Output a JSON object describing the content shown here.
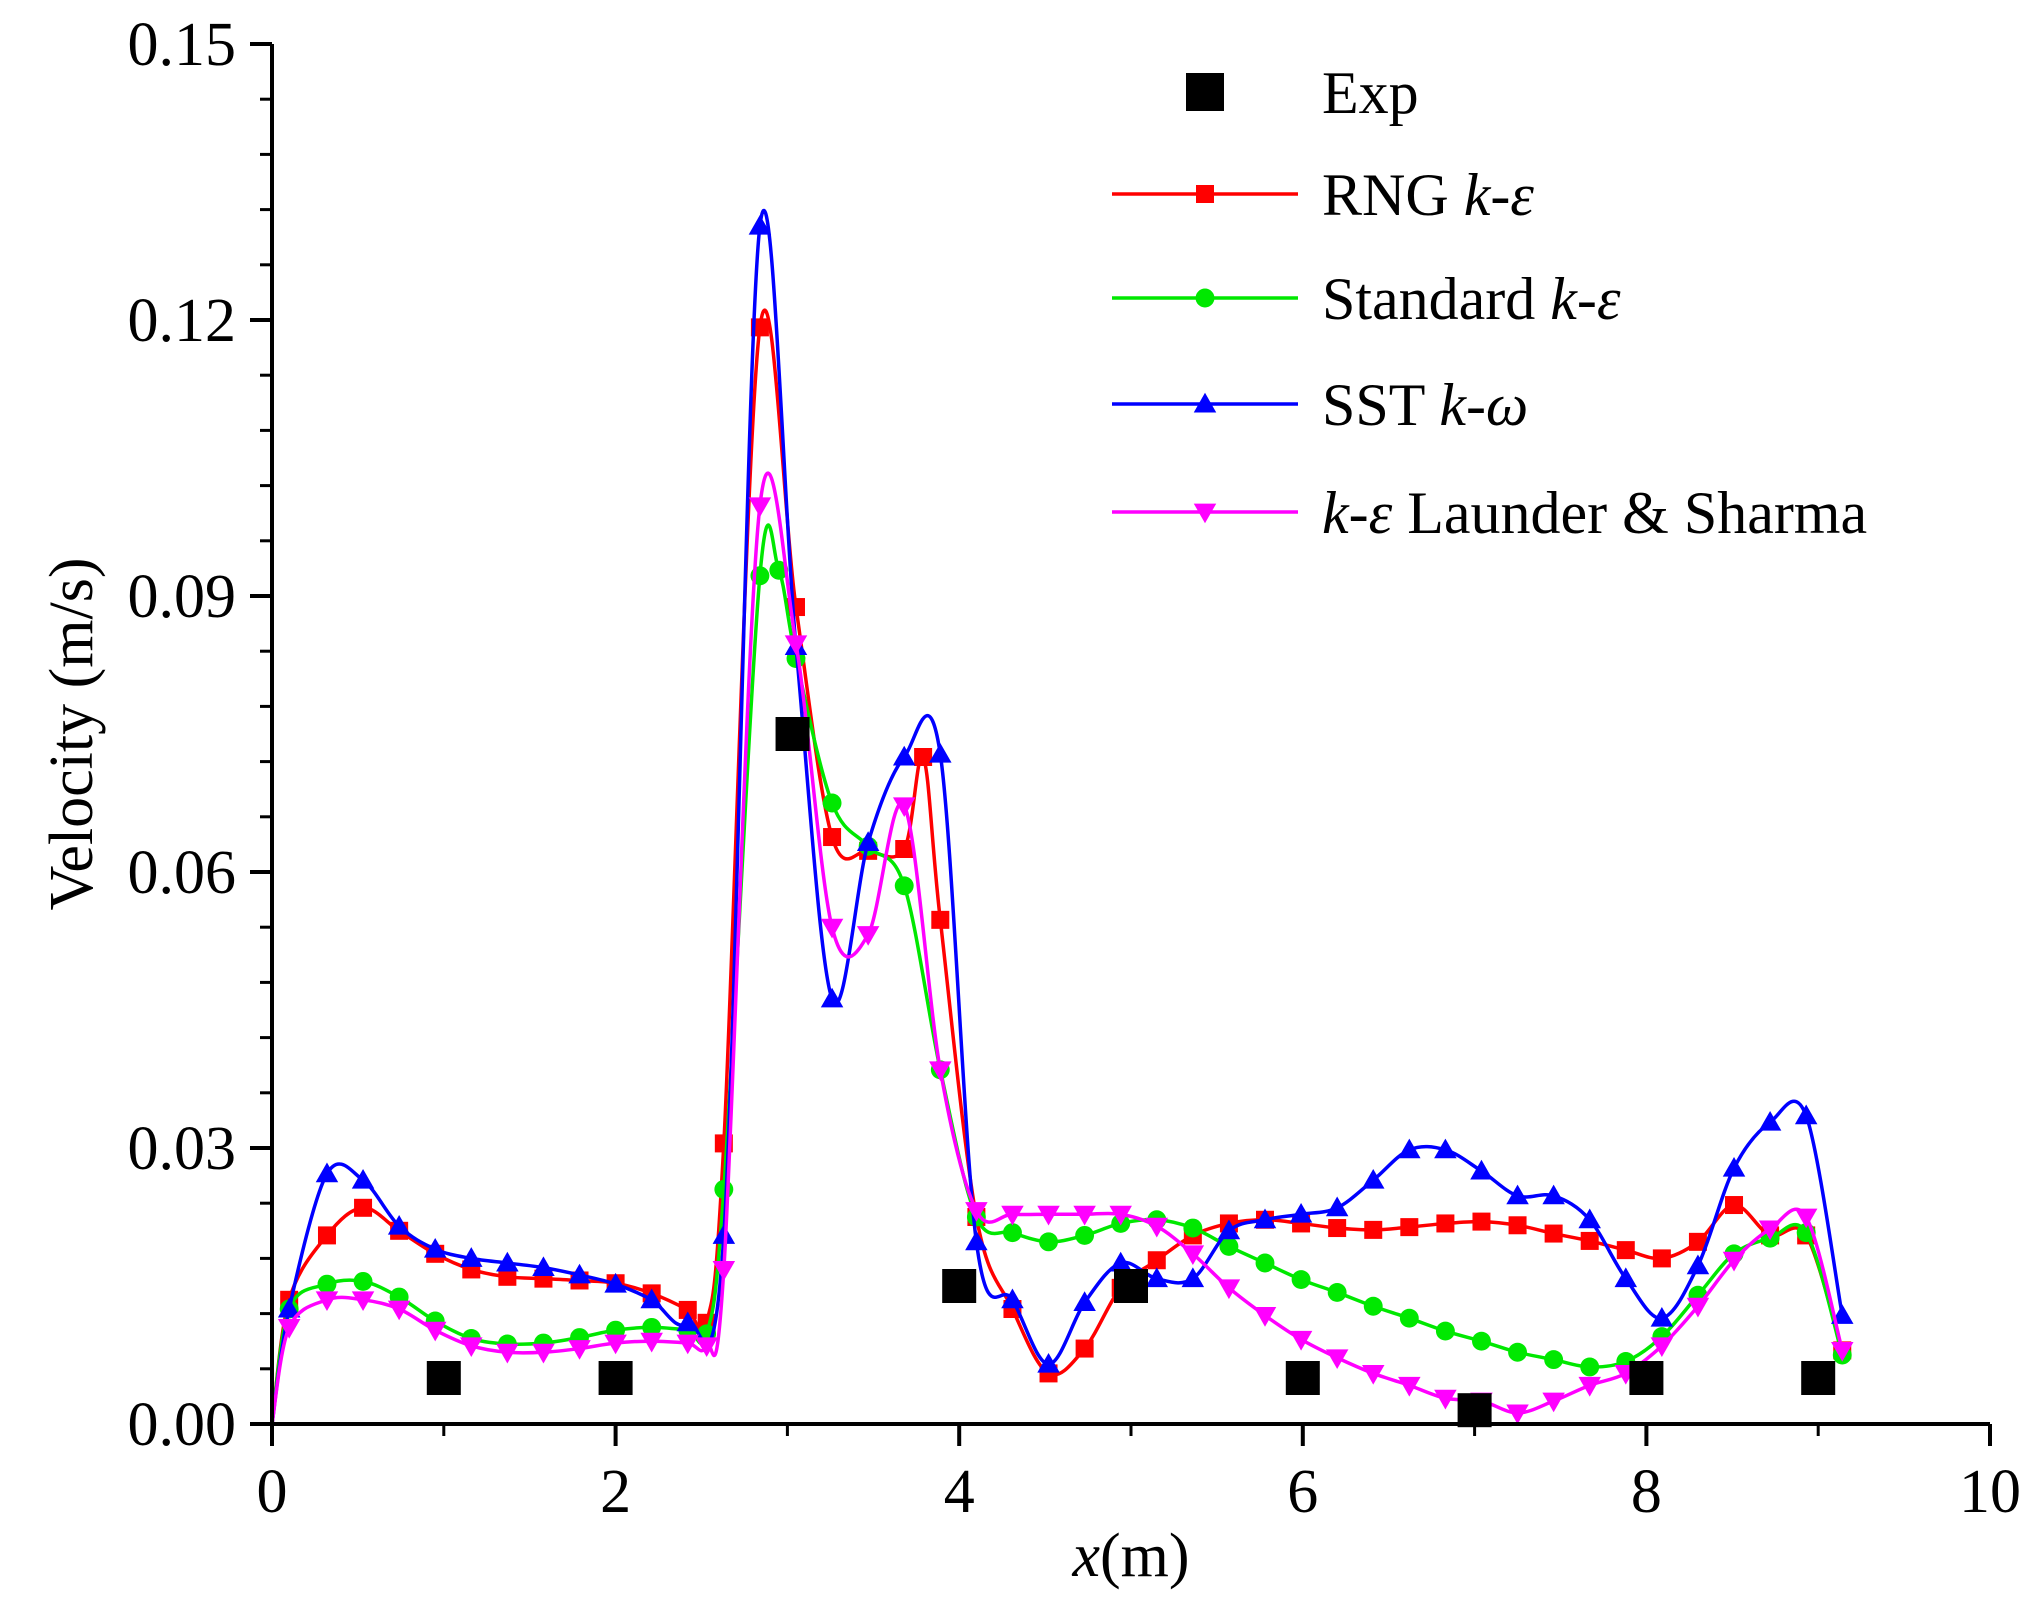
{
  "chart_data": {
    "type": "line",
    "title": "",
    "xlabel_italic": "x",
    "xlabel_rest": "(m)",
    "ylabel": "Velocity (m/s)",
    "xlim": [
      0,
      10
    ],
    "ylim": [
      0,
      0.15
    ],
    "xticks": [
      0,
      2,
      4,
      6,
      8,
      10
    ],
    "xtick_labels": [
      "0",
      "2",
      "4",
      "6",
      "8",
      "10"
    ],
    "yticks": [
      0,
      0.03,
      0.06,
      0.09,
      0.12,
      0.15
    ],
    "ytick_labels": [
      "0.00",
      "0.03",
      "0.06",
      "0.09",
      "0.12",
      "0.15"
    ],
    "legend_position": "top-right",
    "legend": [
      {
        "key": "exp",
        "prefix": "Exp",
        "italic": "",
        "suffix": ""
      },
      {
        "key": "rng",
        "prefix": "RNG ",
        "italic": "k-ε",
        "suffix": ""
      },
      {
        "key": "std",
        "prefix": "Standard ",
        "italic": "k-ε",
        "suffix": ""
      },
      {
        "key": "sst",
        "prefix": "SST ",
        "italic": "k-ω",
        "suffix": ""
      },
      {
        "key": "ls",
        "prefix": "",
        "italic": "k-ε",
        "suffix": " Launder & Sharma"
      }
    ],
    "series": [
      {
        "name": "Exp",
        "key": "exp",
        "color": "#000000",
        "marker": "square",
        "line": false,
        "x": [
          1,
          2,
          3.03,
          4,
          5,
          6,
          7,
          8,
          9
        ],
        "y": [
          0.005,
          0.005,
          0.075,
          0.015,
          0.015,
          0.005,
          0.0015,
          0.005,
          0.005
        ]
      },
      {
        "name": "RNG k-ε",
        "key": "rng",
        "color": "#ff0000",
        "marker": "square",
        "line": true,
        "x": [
          0,
          0.1,
          0.32,
          0.53,
          0.74,
          0.95,
          1.16,
          1.37,
          1.58,
          1.79,
          2.0,
          2.21,
          2.42,
          2.53,
          2.63,
          2.84,
          3.05,
          3.26,
          3.47,
          3.68,
          3.79,
          3.89,
          4.1,
          4.31,
          4.52,
          4.73,
          4.94,
          5.15,
          5.36,
          5.57,
          5.78,
          5.99,
          6.2,
          6.41,
          6.62,
          6.83,
          7.04,
          7.25,
          7.46,
          7.67,
          7.88,
          8.09,
          8.3,
          8.51,
          8.72,
          8.93,
          9.14
        ],
        "y": [
          0.0,
          0.0135,
          0.0205,
          0.0235,
          0.021,
          0.0185,
          0.0168,
          0.016,
          0.0158,
          0.0156,
          0.0153,
          0.0142,
          0.0124,
          0.011,
          0.0305,
          0.1192,
          0.0888,
          0.0638,
          0.0623,
          0.0625,
          0.0725,
          0.0548,
          0.0225,
          0.0125,
          0.0055,
          0.0082,
          0.0148,
          0.0178,
          0.0205,
          0.0218,
          0.0222,
          0.0218,
          0.0213,
          0.0211,
          0.0214,
          0.0218,
          0.022,
          0.0216,
          0.0207,
          0.0199,
          0.0189,
          0.018,
          0.0198,
          0.0238,
          0.0205,
          0.0205,
          0.008
        ]
      },
      {
        "name": "Standard k-ε",
        "key": "std",
        "color": "#00e800",
        "marker": "circle",
        "line": true,
        "x": [
          0,
          0.1,
          0.32,
          0.53,
          0.74,
          0.95,
          1.16,
          1.37,
          1.58,
          1.79,
          2.0,
          2.21,
          2.42,
          2.53,
          2.63,
          2.84,
          2.95,
          3.05,
          3.26,
          3.47,
          3.68,
          3.89,
          4.1,
          4.31,
          4.52,
          4.73,
          4.94,
          5.15,
          5.36,
          5.57,
          5.78,
          5.99,
          6.2,
          6.41,
          6.62,
          6.83,
          7.04,
          7.25,
          7.46,
          7.67,
          7.88,
          8.09,
          8.3,
          8.51,
          8.72,
          8.93,
          9.14
        ],
        "y": [
          0.0,
          0.0125,
          0.0152,
          0.0155,
          0.0138,
          0.0112,
          0.0093,
          0.0087,
          0.0088,
          0.0094,
          0.0102,
          0.0105,
          0.0102,
          0.0098,
          0.0255,
          0.0922,
          0.0928,
          0.0832,
          0.0675,
          0.0628,
          0.0585,
          0.0385,
          0.0225,
          0.0208,
          0.0198,
          0.0205,
          0.0218,
          0.0222,
          0.0213,
          0.0193,
          0.0175,
          0.0157,
          0.0143,
          0.0128,
          0.0115,
          0.0101,
          0.009,
          0.0078,
          0.007,
          0.0062,
          0.0068,
          0.0095,
          0.014,
          0.0185,
          0.0202,
          0.0208,
          0.0075
        ]
      },
      {
        "name": "SST k-ω",
        "key": "sst",
        "color": "#0000ff",
        "marker": "triangle-up",
        "line": true,
        "x": [
          0,
          0.1,
          0.32,
          0.53,
          0.74,
          0.95,
          1.16,
          1.37,
          1.58,
          1.79,
          2.0,
          2.21,
          2.42,
          2.63,
          2.84,
          3.05,
          3.26,
          3.47,
          3.68,
          3.89,
          4.1,
          4.31,
          4.52,
          4.73,
          4.94,
          5.15,
          5.36,
          5.57,
          5.78,
          5.99,
          6.2,
          6.41,
          6.62,
          6.83,
          7.04,
          7.25,
          7.46,
          7.67,
          7.88,
          8.09,
          8.3,
          8.51,
          8.72,
          8.93,
          9.14
        ],
        "y": [
          0.0,
          0.0125,
          0.0272,
          0.0265,
          0.0215,
          0.019,
          0.018,
          0.0175,
          0.017,
          0.0162,
          0.0152,
          0.0135,
          0.011,
          0.0205,
          0.1302,
          0.0845,
          0.0462,
          0.0632,
          0.0725,
          0.0728,
          0.0198,
          0.0135,
          0.0065,
          0.0132,
          0.0175,
          0.0158,
          0.0158,
          0.021,
          0.0222,
          0.0228,
          0.0235,
          0.0265,
          0.0298,
          0.0298,
          0.0275,
          0.0248,
          0.0248,
          0.0222,
          0.0158,
          0.0115,
          0.0172,
          0.0278,
          0.0328,
          0.0335,
          0.0118
        ]
      },
      {
        "name": "k-ε Launder & Sharma",
        "key": "ls",
        "color": "#ff00ff",
        "marker": "triangle-down",
        "line": true,
        "x": [
          0,
          0.1,
          0.32,
          0.53,
          0.74,
          0.95,
          1.16,
          1.37,
          1.58,
          1.79,
          2.0,
          2.21,
          2.42,
          2.53,
          2.63,
          2.84,
          3.05,
          3.26,
          3.47,
          3.68,
          3.89,
          4.1,
          4.31,
          4.52,
          4.73,
          4.94,
          5.15,
          5.36,
          5.57,
          5.78,
          5.99,
          6.2,
          6.41,
          6.62,
          6.83,
          7.04,
          7.25,
          7.46,
          7.67,
          7.88,
          8.09,
          8.3,
          8.51,
          8.72,
          8.93,
          9.14
        ],
        "y": [
          0.0,
          0.0105,
          0.0135,
          0.0135,
          0.0125,
          0.0102,
          0.0085,
          0.0078,
          0.0078,
          0.0082,
          0.0088,
          0.009,
          0.0088,
          0.0085,
          0.0168,
          0.0998,
          0.0848,
          0.054,
          0.0532,
          0.0672,
          0.0385,
          0.0232,
          0.0228,
          0.0228,
          0.0228,
          0.0228,
          0.0215,
          0.0185,
          0.0148,
          0.0118,
          0.0092,
          0.0072,
          0.0055,
          0.0042,
          0.0028,
          0.0025,
          0.0012,
          0.0025,
          0.0042,
          0.0055,
          0.0085,
          0.0128,
          0.0178,
          0.0212,
          0.0225,
          0.008
        ]
      }
    ]
  }
}
